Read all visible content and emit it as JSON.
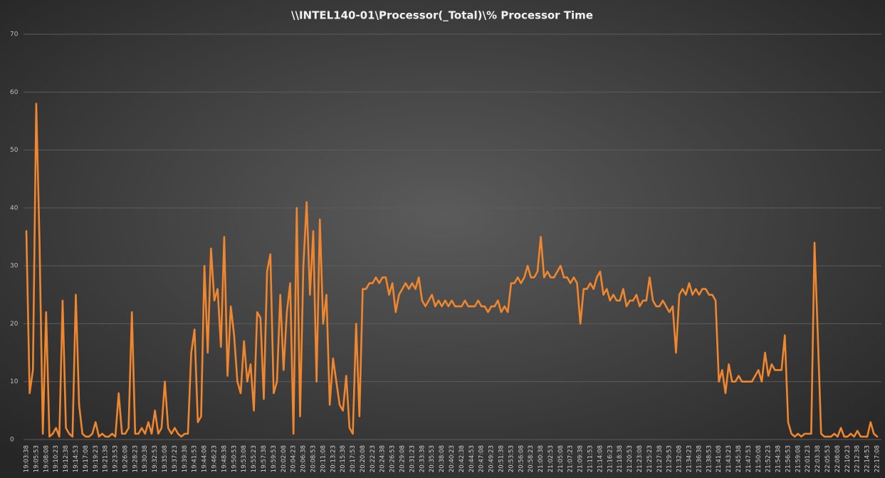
{
  "chart_data": {
    "type": "line",
    "title": "\\\\INTEL140-01\\Processor(_Total)\\% Processor Time",
    "color": "#f0862e",
    "ylim": [
      0,
      70
    ],
    "yticks": [
      0,
      10,
      20,
      30,
      40,
      50,
      60,
      70
    ],
    "grid": true,
    "categories": [
      "19:03:38",
      null,
      null,
      "19:05:53",
      null,
      null,
      "19:08:08",
      null,
      null,
      "19:10:23",
      null,
      null,
      "19:12:38",
      null,
      null,
      "19:14:53",
      null,
      null,
      "19:17:08",
      null,
      null,
      "19:19:23",
      null,
      null,
      "19:21:38",
      null,
      null,
      "19:23:53",
      null,
      null,
      "19:26:08",
      null,
      null,
      "19:28:23",
      null,
      null,
      "19:30:38",
      null,
      null,
      "19:32:53",
      null,
      null,
      "19:35:08",
      null,
      null,
      "19:37:23",
      null,
      null,
      "19:39:38",
      null,
      null,
      "19:41:53",
      null,
      null,
      "19:44:08",
      null,
      null,
      "19:46:23",
      null,
      null,
      "19:48:38",
      null,
      null,
      "19:50:53",
      null,
      null,
      "19:53:08",
      null,
      null,
      "19:55:23",
      null,
      null,
      "19:57:38",
      null,
      null,
      "19:59:53",
      null,
      null,
      "20:02:08",
      null,
      null,
      "20:04:23",
      null,
      null,
      "20:06:38",
      null,
      null,
      "20:08:53",
      null,
      null,
      "20:11:08",
      null,
      null,
      "20:13:23",
      null,
      null,
      "20:15:38",
      null,
      null,
      "20:17:53",
      null,
      null,
      "20:20:08",
      null,
      null,
      "20:22:23",
      null,
      null,
      "20:24:38",
      null,
      null,
      "20:26:53",
      null,
      null,
      "20:29:08",
      null,
      null,
      "20:31:23",
      null,
      null,
      "20:33:38",
      null,
      null,
      "20:35:53",
      null,
      null,
      "20:38:08",
      null,
      null,
      "20:40:23",
      null,
      null,
      "20:42:38",
      null,
      null,
      "20:44:53",
      null,
      null,
      "20:47:08",
      null,
      null,
      "20:49:23",
      null,
      null,
      "20:51:38",
      null,
      null,
      "20:53:53",
      null,
      null,
      "20:56:08",
      null,
      null,
      "20:58:23",
      null,
      null,
      "21:00:38",
      null,
      null,
      "21:02:53",
      null,
      null,
      "21:05:08",
      null,
      null,
      "21:07:23",
      null,
      null,
      "21:09:38",
      null,
      null,
      "21:11:53",
      null,
      null,
      "21:14:08",
      null,
      null,
      "21:16:23",
      null,
      null,
      "21:18:38",
      null,
      null,
      "21:20:53",
      null,
      null,
      "21:23:08",
      null,
      null,
      "21:25:23",
      null,
      null,
      "21:27:38",
      null,
      null,
      "21:29:53",
      null,
      null,
      "21:32:08",
      null,
      null,
      "21:34:23",
      null,
      null,
      "21:36:38",
      null,
      null,
      "21:38:53",
      null,
      null,
      "21:41:08",
      null,
      null,
      "21:43:23",
      null,
      null,
      "21:45:38",
      null,
      null,
      "21:47:53",
      null,
      null,
      "21:50:08",
      null,
      null,
      "21:52:23",
      null,
      null,
      "21:54:38",
      null,
      null,
      "21:56:53",
      null,
      null,
      "21:59:08",
      null,
      null,
      "22:01:23",
      null,
      null,
      "22:03:38",
      null,
      null,
      "22:05:53",
      null,
      null,
      "22:08:08",
      null,
      null,
      "22:10:23",
      null,
      null,
      "22:12:38",
      null,
      null,
      "22:14:53",
      null,
      null,
      "22:17:08"
    ],
    "values": [
      36,
      8,
      12,
      58,
      34,
      1,
      22,
      0.5,
      1,
      2,
      0.5,
      24,
      2,
      1,
      0.5,
      25,
      6,
      1,
      0.5,
      0.5,
      1,
      3,
      0.5,
      1,
      0.5,
      0.5,
      1,
      0.5,
      8,
      1,
      1,
      2,
      22,
      1,
      1,
      2,
      1,
      3,
      1,
      5,
      1,
      2,
      10,
      2,
      1,
      2,
      1,
      0.5,
      1,
      1,
      15,
      19,
      3,
      4,
      30,
      15,
      33,
      24,
      26,
      16,
      35,
      11,
      23,
      18,
      10,
      8,
      17,
      10,
      13,
      5,
      22,
      21,
      7,
      29,
      32,
      8,
      10,
      25,
      12,
      22,
      27,
      1,
      40,
      4,
      30,
      41,
      25,
      36,
      10,
      38,
      20,
      25,
      6,
      14,
      10,
      6,
      5,
      11,
      2,
      1,
      20,
      4,
      26,
      26,
      27,
      27,
      28,
      27,
      28,
      28,
      25,
      27,
      22,
      25,
      26,
      27,
      26,
      27,
      26,
      28,
      24,
      23,
      24,
      25,
      23,
      24,
      23,
      24,
      23,
      24,
      23,
      23,
      23,
      24,
      23,
      23,
      23,
      24,
      23,
      23,
      22,
      23,
      23,
      24,
      22,
      23,
      22,
      27,
      27,
      28,
      27,
      28,
      30,
      28,
      28,
      29,
      35,
      28,
      29,
      28,
      28,
      29,
      30,
      28,
      28,
      27,
      28,
      27,
      20,
      26,
      26,
      27,
      26,
      28,
      29,
      25,
      26,
      24,
      25,
      24,
      24,
      26,
      23,
      24,
      24,
      25,
      23,
      24,
      24,
      28,
      24,
      23,
      23,
      24,
      23,
      22,
      23,
      15,
      25,
      26,
      25,
      27,
      25,
      26,
      25,
      26,
      26,
      25,
      25,
      24,
      10,
      12,
      8,
      13,
      10,
      10,
      11,
      10,
      10,
      10,
      10,
      11,
      12,
      10,
      15,
      11,
      13,
      12,
      12,
      12,
      18,
      3,
      1,
      0.5,
      1,
      0.5,
      1,
      1,
      1,
      34,
      18,
      1,
      0.5,
      0.5,
      0.5,
      1,
      0.5,
      2,
      0.5,
      0.5,
      1,
      0.5,
      1.5,
      0.5,
      0.5,
      0.5,
      3,
      1,
      0.5
    ]
  }
}
